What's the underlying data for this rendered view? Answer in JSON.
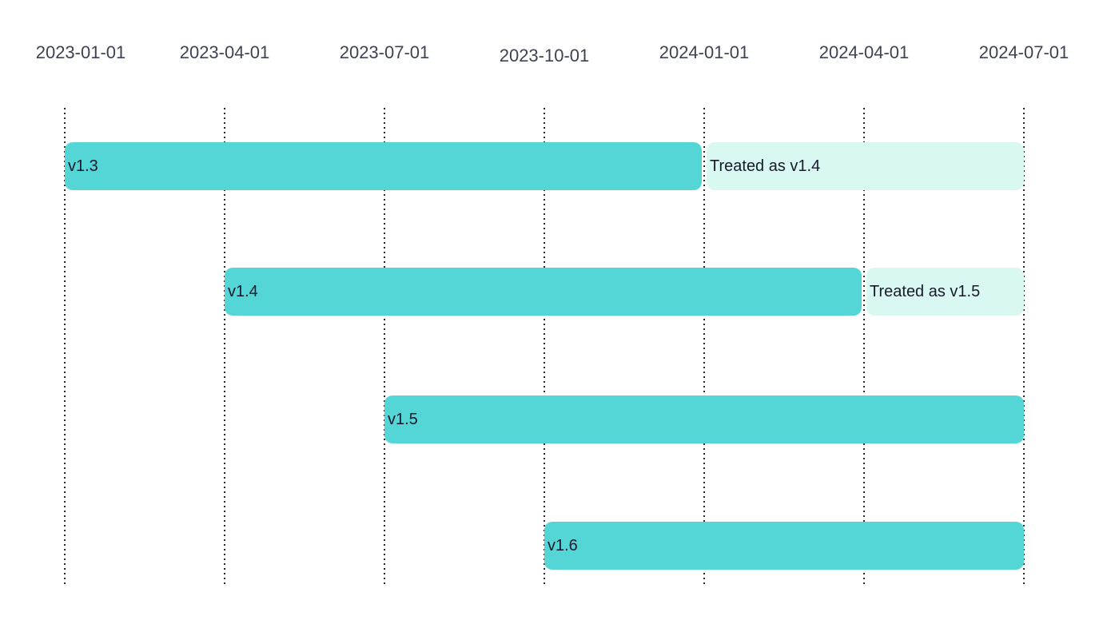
{
  "chart_data": {
    "type": "gantt",
    "title": "",
    "axis": {
      "position": "top",
      "range": [
        "2023-01-01",
        "2024-07-01"
      ],
      "grid": "dotted-vertical",
      "ticks": [
        "2023-01-01",
        "2023-04-01",
        "2023-07-01",
        "2023-10-01",
        "2024-01-01",
        "2024-04-01",
        "2024-07-01"
      ]
    },
    "rows": [
      {
        "segments": [
          {
            "label": "v1.3",
            "start": "2023-01-01",
            "end": "2024-01-01",
            "style": "solid"
          },
          {
            "label": "Treated as v1.4",
            "start": "2024-01-01",
            "end": "2024-07-01",
            "style": "light"
          }
        ]
      },
      {
        "segments": [
          {
            "label": "v1.4",
            "start": "2023-04-01",
            "end": "2024-04-01",
            "style": "solid"
          },
          {
            "label": "Treated as v1.5",
            "start": "2024-04-01",
            "end": "2024-07-01",
            "style": "light"
          }
        ]
      },
      {
        "segments": [
          {
            "label": "v1.5",
            "start": "2023-07-01",
            "end": "2024-07-01",
            "style": "solid"
          }
        ]
      },
      {
        "segments": [
          {
            "label": "v1.6",
            "start": "2023-10-01",
            "end": "2024-07-01",
            "style": "solid"
          }
        ]
      }
    ],
    "colors": {
      "background": "#ffffff",
      "bar_solid": "#55d6d6",
      "bar_light": "#d9f8f2",
      "bar_text": "#181a2c",
      "axis_text": "#3e4353",
      "gridline": "#2f2f2f"
    }
  }
}
